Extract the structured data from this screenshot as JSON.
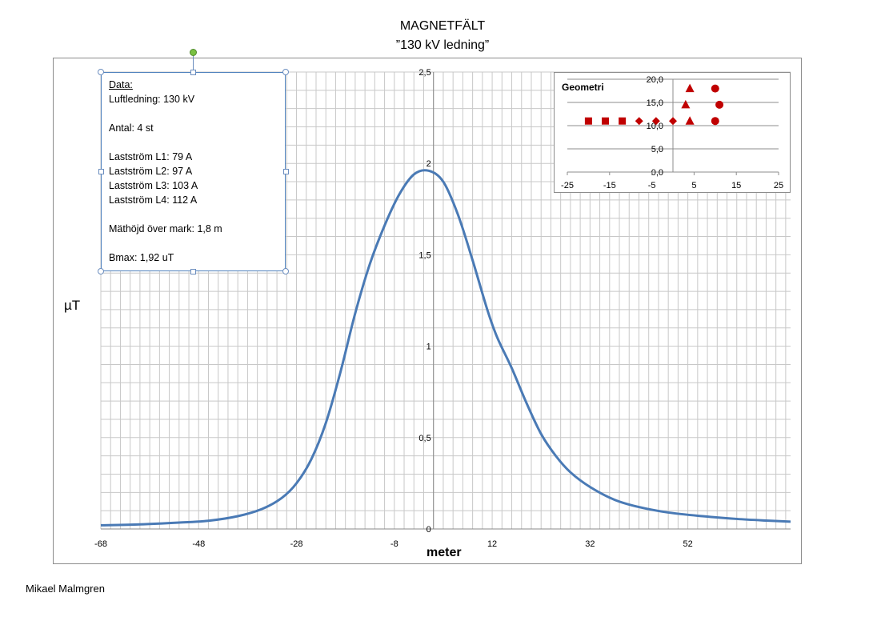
{
  "chart_data": [
    {
      "type": "line",
      "title": "MAGNETFÄLT",
      "subtitle": "”130 kV ledning”",
      "xlabel": "meter",
      "ylabel": "µT",
      "xlim": [
        -68,
        73
      ],
      "ylim": [
        0,
        2.5
      ],
      "x_ticks": [
        "-68",
        "-48",
        "-28",
        "-8",
        "12",
        "32",
        "52"
      ],
      "y_ticks": [
        "0",
        "0,5",
        "1",
        "1,5",
        "2",
        "2,5"
      ],
      "grid": true,
      "series": [
        {
          "color": "#4a7ab5",
          "points": [
            [
              -68,
              0.02
            ],
            [
              -60,
              0.025
            ],
            [
              -52,
              0.035
            ],
            [
              -46,
              0.045
            ],
            [
              -40,
              0.07
            ],
            [
              -35,
              0.11
            ],
            [
              -31,
              0.17
            ],
            [
              -28,
              0.25
            ],
            [
              -25,
              0.38
            ],
            [
              -22,
              0.58
            ],
            [
              -19,
              0.86
            ],
            [
              -16,
              1.18
            ],
            [
              -13,
              1.45
            ],
            [
              -10,
              1.66
            ],
            [
              -7,
              1.83
            ],
            [
              -4,
              1.94
            ],
            [
              -1,
              1.96
            ],
            [
              2,
              1.9
            ],
            [
              5,
              1.72
            ],
            [
              8,
              1.47
            ],
            [
              11,
              1.2
            ],
            [
              13,
              1.05
            ],
            [
              16,
              0.88
            ],
            [
              19,
              0.69
            ],
            [
              22,
              0.52
            ],
            [
              25,
              0.4
            ],
            [
              28,
              0.31
            ],
            [
              32,
              0.23
            ],
            [
              37,
              0.16
            ],
            [
              42,
              0.12
            ],
            [
              48,
              0.09
            ],
            [
              55,
              0.07
            ],
            [
              62,
              0.055
            ],
            [
              68,
              0.046
            ],
            [
              73,
              0.04
            ]
          ]
        }
      ]
    },
    {
      "type": "scatter",
      "title": "Geometri",
      "xlim": [
        -25,
        25
      ],
      "ylim": [
        0,
        20
      ],
      "x_ticks": [
        "-25",
        "-15",
        "-5",
        "5",
        "15",
        "25"
      ],
      "y_ticks": [
        "0,0",
        "5,0",
        "10,0",
        "15,0",
        "20,0"
      ],
      "series": [
        {
          "marker": "square",
          "color": "#c00000",
          "points": [
            [
              -20,
              11
            ],
            [
              -16,
              11
            ],
            [
              -12,
              11
            ]
          ]
        },
        {
          "marker": "diamond",
          "color": "#c00000",
          "points": [
            [
              -8,
              11
            ],
            [
              -4,
              11
            ],
            [
              0,
              11
            ]
          ]
        },
        {
          "marker": "triangle",
          "color": "#c00000",
          "points": [
            [
              4,
              18
            ],
            [
              3,
              14.5
            ],
            [
              4,
              11
            ]
          ]
        },
        {
          "marker": "circle",
          "color": "#c00000",
          "points": [
            [
              10,
              18
            ],
            [
              11,
              14.5
            ],
            [
              10,
              11
            ]
          ]
        }
      ]
    }
  ],
  "databox": {
    "header": "Data:",
    "line1": "Luftledning: 130 kV",
    "line2": "Antal: 4 st",
    "line3": "Lastström L1:  79  A",
    "line4": "Lastström L2:  97  A",
    "line5": "Lastström L3:  103  A",
    "line6": "Lastström L4:  112  A",
    "line7": "Mäthöjd över mark: 1,8 m",
    "line8": "Bmax: 1,92  uT"
  },
  "author": "Mikael Malmgren"
}
